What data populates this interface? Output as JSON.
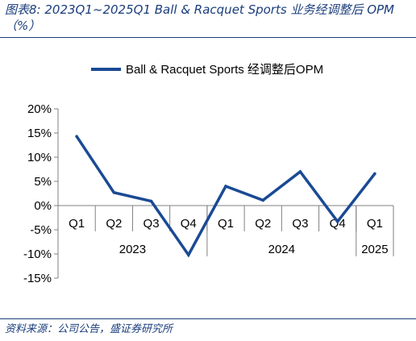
{
  "header": {
    "caption_line1": "图表8:  2023Q1~2025Q1 Ball & Racquet Sports 业务经调整后 OPM",
    "caption_line2": "（%）"
  },
  "footer": {
    "source": "资料来源：公司公告，盛证券研究所"
  },
  "chart_data": {
    "type": "line",
    "title": "",
    "xlabel": "",
    "ylabel": "",
    "ylim": [
      -15,
      20
    ],
    "yticks": [
      -15,
      -10,
      -5,
      0,
      5,
      10,
      15,
      20
    ],
    "ytick_labels": [
      "-15%",
      "-10%",
      "-5%",
      "0%",
      "5%",
      "10%",
      "15%",
      "20%"
    ],
    "categories": [
      "Q1",
      "Q2",
      "Q3",
      "Q4",
      "Q1",
      "Q2",
      "Q3",
      "Q4",
      "Q1"
    ],
    "groups": [
      {
        "label": "2023",
        "count": 4
      },
      {
        "label": "2024",
        "count": 4
      },
      {
        "label": "2025",
        "count": 1
      }
    ],
    "series": [
      {
        "name": "Ball & Racquet Sports 经调整后OPM",
        "color": "#1a4a94",
        "values": [
          14.3,
          2.7,
          0.9,
          -10.2,
          4.0,
          1.1,
          7.0,
          -3.3,
          6.6
        ]
      }
    ],
    "grid": false,
    "legend": "top"
  }
}
